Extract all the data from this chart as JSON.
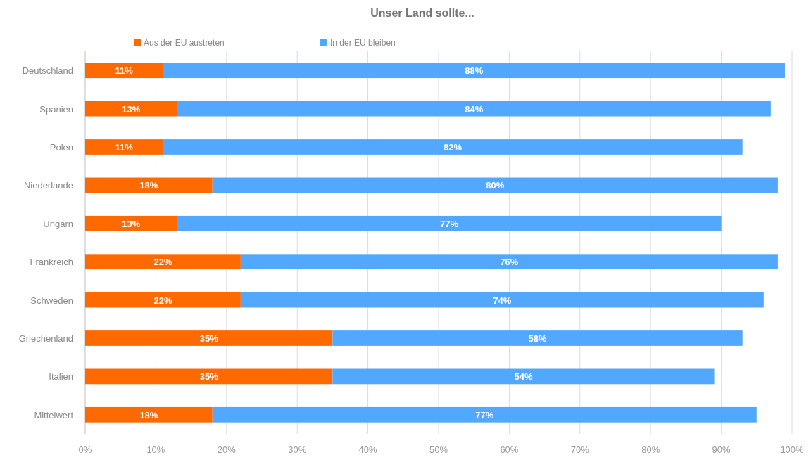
{
  "chart_data": {
    "type": "bar",
    "title": "Unser Land sollte...",
    "orientation": "horizontal",
    "stacked": true,
    "categories": [
      "Deutschland",
      "Spanien",
      "Polen",
      "Niederlande",
      "Ungarn",
      "Frankreich",
      "Schweden",
      "Griechenland",
      "Italien",
      "Mittelwert"
    ],
    "series": [
      {
        "name": "Aus der EU austreten",
        "color": "#ff6a00",
        "values": [
          11,
          13,
          11,
          18,
          13,
          22,
          22,
          35,
          35,
          18
        ],
        "value_labels": [
          "11%",
          "13%",
          "11%",
          "18%",
          "13%",
          "22%",
          "22%",
          "35%",
          "35%",
          "18%"
        ]
      },
      {
        "name": "In der EU bleiben",
        "color": "#52a8ff",
        "values": [
          88,
          84,
          82,
          80,
          77,
          76,
          74,
          58,
          54,
          77
        ],
        "value_labels": [
          "88%",
          "84%",
          "82%",
          "80%",
          "77%",
          "76%",
          "74%",
          "58%",
          "54%",
          "77%"
        ]
      }
    ],
    "xlim": [
      0,
      100
    ],
    "xticks": [
      {
        "value": 0,
        "label": "0%"
      },
      {
        "value": 10,
        "label": "10%"
      },
      {
        "value": 20,
        "label": "20%"
      },
      {
        "value": 30,
        "label": "30%"
      },
      {
        "value": 40,
        "label": "40%"
      },
      {
        "value": 50,
        "label": "50%"
      },
      {
        "value": 60,
        "label": "60%"
      },
      {
        "value": 70,
        "label": "70%"
      },
      {
        "value": 80,
        "label": "80%"
      },
      {
        "value": 90,
        "label": "90%"
      },
      {
        "value": 100,
        "label": "100%"
      }
    ],
    "grid": "x",
    "legend": "top left"
  }
}
